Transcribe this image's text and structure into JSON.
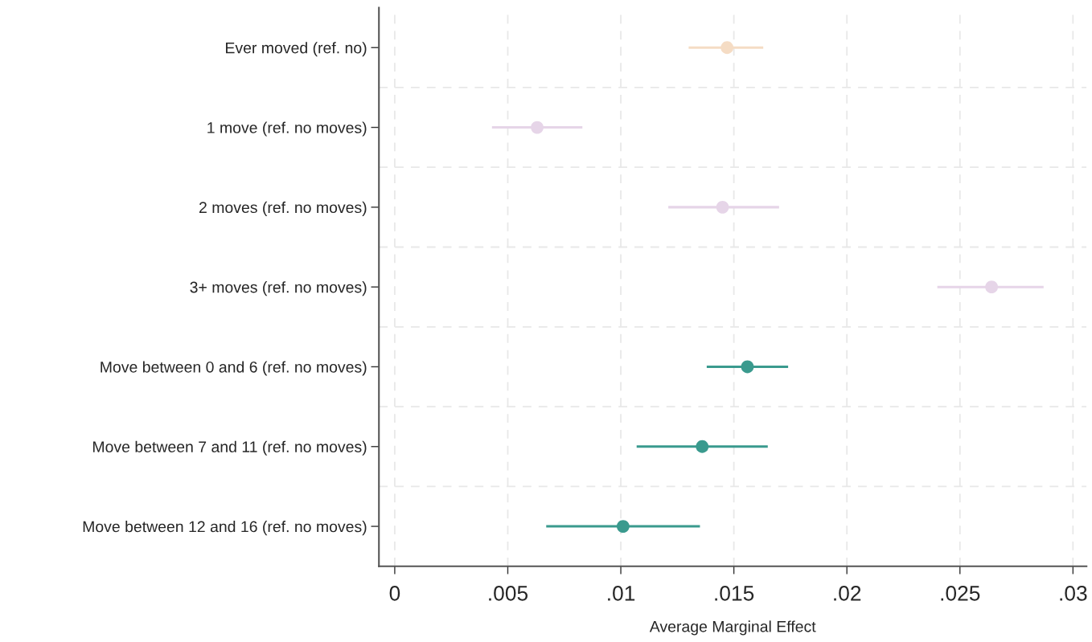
{
  "chart_data": {
    "type": "scatter",
    "orientation": "horizontal",
    "xlabel": "Average Marginal Effect",
    "categories": [
      "Ever moved (ref. no)",
      "1 move (ref. no moves)",
      "2 moves (ref. no moves)",
      "3+ moves (ref. no moves)",
      "Move between 0 and 6 (ref. no moves)",
      "Move between 7 and 11 (ref. no moves)",
      "Move between 12 and 16 (ref. no moves)"
    ],
    "values": [
      0.0147,
      0.0063,
      0.0145,
      0.0264,
      0.0156,
      0.0136,
      0.0101
    ],
    "errors": [
      [
        0.013,
        0.0163
      ],
      [
        0.0043,
        0.0083
      ],
      [
        0.0121,
        0.017
      ],
      [
        0.024,
        0.0287
      ],
      [
        0.0138,
        0.0174
      ],
      [
        0.0107,
        0.0165
      ],
      [
        0.0067,
        0.0135
      ]
    ],
    "colors": [
      "#f5dcc4",
      "#e6d5e8",
      "#e6d5e8",
      "#e6d5e8",
      "#3a9a8e",
      "#3a9a8e",
      "#3a9a8e"
    ],
    "xlim": [
      -0.0007,
      0.0306
    ],
    "xticks": [
      0,
      {
        "value": 0.005,
        "label": ".005"
      },
      {
        "value": 0.01,
        "label": ".01"
      },
      {
        "value": 0.015,
        "label": ".015"
      },
      {
        "value": 0.02,
        "label": ".02"
      },
      {
        "value": 0.025,
        "label": ".025"
      },
      {
        "value": 0.03,
        "label": ".03"
      }
    ],
    "grid": true,
    "marker": "circle",
    "legend": false
  }
}
